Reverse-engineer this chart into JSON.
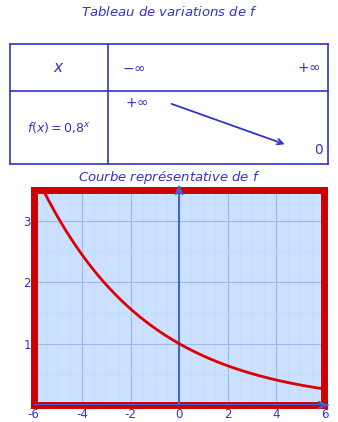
{
  "title_table": "Tableau de variations de $f$",
  "title_curve": "Courbe représentative de $f$",
  "func_label": "$f (x) = 0{,}8^x$",
  "x_label": "$x$",
  "row1_left": "$-\\infty$",
  "row1_right": "$+\\infty$",
  "row2_left_top": "$+\\infty$",
  "row2_right_bottom": "$0$",
  "base": 0.8,
  "xmin": -6,
  "xmax": 6,
  "ymin": 0,
  "ymax": 3.5,
  "xticks": [
    -6,
    -4,
    -2,
    0,
    2,
    4,
    6
  ],
  "yticks": [
    1,
    2,
    3
  ],
  "blue_color": "#3333cc",
  "red_color": "#dd0000",
  "grid_major_color": "#99bbee",
  "grid_minor_color": "#bbddff",
  "border_color": "#cc0000",
  "bg_color": "#ffffff",
  "table_border_color": "#3333cc",
  "title_color": "#3333cc",
  "axis_color": "#4466cc",
  "tick_color": "#3333cc",
  "graph_bg": "#cce0ff"
}
